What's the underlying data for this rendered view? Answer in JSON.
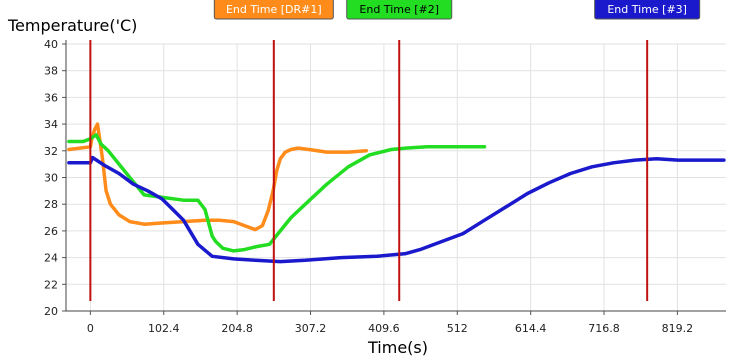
{
  "chart_data": {
    "type": "line",
    "title": "",
    "ylabel": "Temperature('C)",
    "xlabel": "Time(s)",
    "ylim": [
      20,
      40
    ],
    "y_ticks": [
      20,
      22,
      24,
      26,
      28,
      30,
      32,
      34,
      36,
      38,
      40
    ],
    "x_ticks": [
      "0",
      "102.4",
      "204.8",
      "307.2",
      "409.6",
      "512",
      "614.4",
      "716.8",
      "819.2"
    ],
    "x_tick_values": [
      0,
      102.4,
      204.8,
      307.2,
      409.6,
      512,
      614.4,
      716.8,
      819.2
    ],
    "xlim": [
      -34,
      887
    ],
    "grid": true,
    "series": [
      {
        "color": "#ff8c1a",
        "x": [
          -30,
          0,
          2,
          6,
          10,
          14,
          17,
          22,
          28,
          40,
          55,
          75,
          102,
          130,
          160,
          180,
          200,
          215,
          230,
          240,
          248,
          255,
          260,
          265,
          272,
          280,
          290,
          305,
          330,
          360,
          385
        ],
        "y": [
          32.1,
          32.3,
          32.9,
          33.6,
          34.0,
          32.5,
          31.4,
          29.0,
          28.0,
          27.2,
          26.7,
          26.5,
          26.6,
          26.7,
          26.8,
          26.8,
          26.7,
          26.4,
          26.1,
          26.4,
          27.5,
          29.0,
          30.5,
          31.4,
          31.9,
          32.1,
          32.2,
          32.1,
          31.9,
          31.9,
          32.0
        ]
      },
      {
        "color": "#22dd22",
        "x": [
          -30,
          -10,
          0,
          8,
          15,
          25,
          40,
          55,
          75,
          102,
          130,
          150,
          160,
          170,
          175,
          185,
          200,
          215,
          230,
          250,
          265,
          280,
          300,
          330,
          360,
          390,
          420,
          440,
          470,
          500,
          530,
          550
        ],
        "y": [
          32.7,
          32.7,
          32.9,
          33.2,
          32.5,
          32.0,
          31.0,
          30.0,
          28.7,
          28.5,
          28.3,
          28.3,
          27.6,
          25.6,
          25.2,
          24.7,
          24.5,
          24.6,
          24.8,
          25.0,
          26.0,
          27.0,
          28.0,
          29.5,
          30.8,
          31.7,
          32.1,
          32.2,
          32.3,
          32.3,
          32.3,
          32.3
        ]
      },
      {
        "color": "#1a1acc",
        "x": [
          -30,
          0,
          3,
          20,
          40,
          60,
          80,
          100,
          115,
          130,
          150,
          170,
          200,
          230,
          265,
          300,
          350,
          400,
          440,
          460,
          490,
          520,
          550,
          580,
          610,
          640,
          670,
          700,
          730,
          760,
          790,
          820,
          850,
          884
        ],
        "y": [
          31.1,
          31.1,
          31.5,
          30.9,
          30.3,
          29.5,
          29.0,
          28.4,
          27.6,
          26.8,
          25.0,
          24.1,
          23.9,
          23.8,
          23.7,
          23.8,
          24.0,
          24.1,
          24.3,
          24.6,
          25.2,
          25.8,
          26.8,
          27.8,
          28.8,
          29.6,
          30.3,
          30.8,
          31.1,
          31.3,
          31.4,
          31.3,
          31.3,
          31.3
        ]
      }
    ],
    "markers": [
      {
        "label": "",
        "x": 0,
        "color": "#c01010"
      },
      {
        "label": "End Time [DR#1]",
        "x": 256,
        "color": "#c01010",
        "box_color": "#ff8c1a",
        "text_color": "#ffffff"
      },
      {
        "label": "End Time [#2]",
        "x": 431,
        "color": "#c01010",
        "box_color": "#22dd22",
        "text_color": "#000000"
      },
      {
        "label": "End Time [#3]",
        "x": 777,
        "color": "#c01010",
        "box_color": "#1a1acc",
        "text_color": "#ffffff"
      }
    ]
  }
}
